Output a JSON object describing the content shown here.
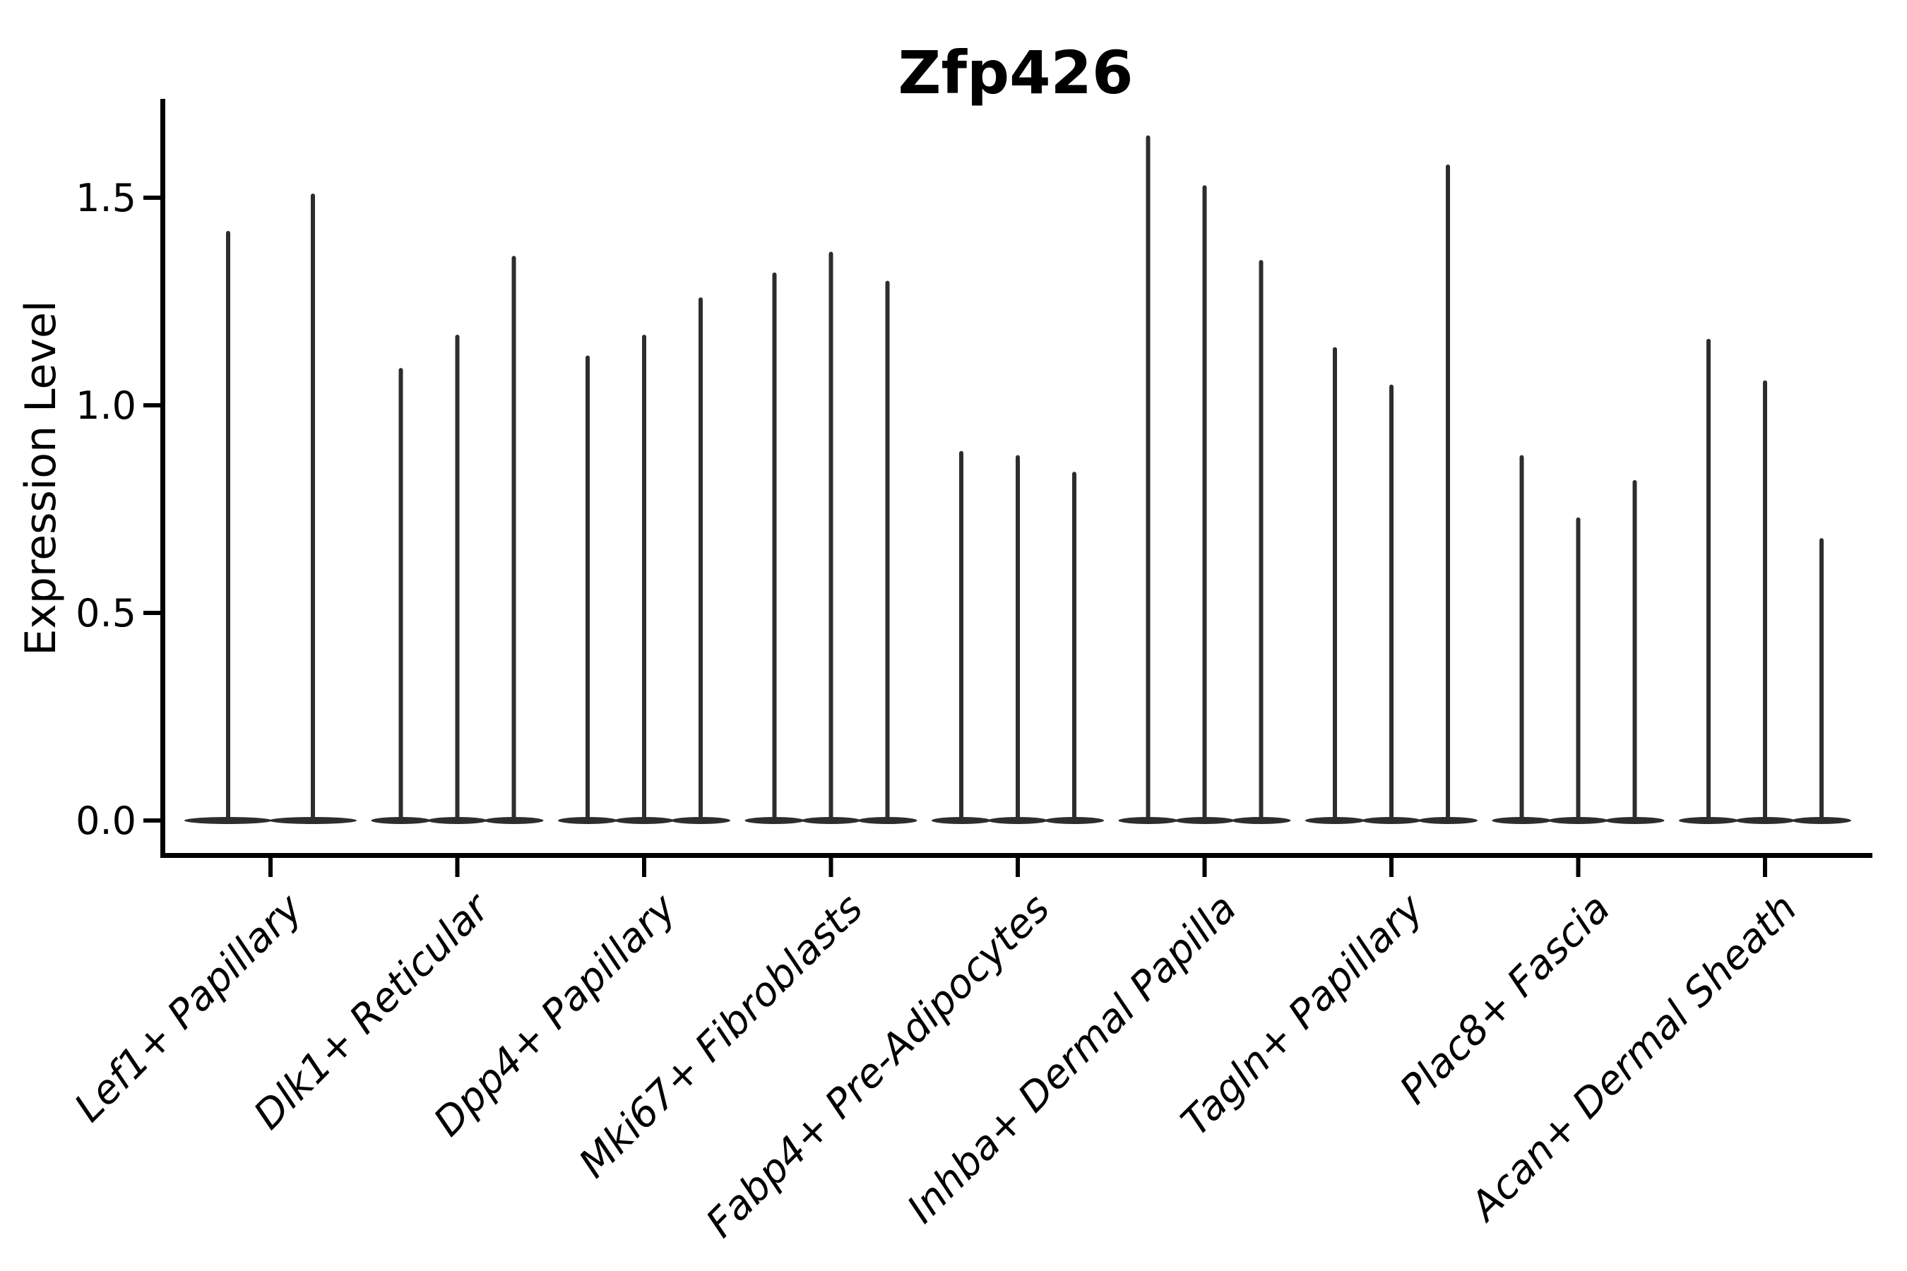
{
  "figure": {
    "title": "Zfp426",
    "y_axis_label": "Expression Level",
    "colors": {
      "violin": "#2d2d2d",
      "axis": "#000000",
      "text": "#000000",
      "background": "#ffffff"
    }
  },
  "chart_data": {
    "type": "violin",
    "title": "Zfp426",
    "xlabel": "",
    "ylabel": "Expression Level",
    "ylim": [
      -0.09,
      1.74
    ],
    "yticks": [
      0.0,
      0.5,
      1.0,
      1.5
    ],
    "ytick_labels": [
      "0.0",
      "0.5",
      "1.0",
      "1.5"
    ],
    "grid": false,
    "legend": "none",
    "x_label_angle_degrees": 45,
    "categories": [
      "Lef1+ Papillary",
      "Dlk1+ Reticular",
      "Dpp4+ Papillary",
      "Mki67+ Fibroblasts",
      "Fabp4+ Pre-Adipocytes",
      "Inhba+ Dermal Papilla",
      "Tagln+ Papillary",
      "Plac8+ Fascia",
      "Acan+ Dermal Sheath"
    ],
    "series_note": "Each category shows narrow violins (density mass at 0 with a thin tail); values are the max expression (tail tip) of each violin, left to right within the group.",
    "violin_peaks": [
      [
        1.42,
        1.51
      ],
      [
        1.09,
        1.17,
        1.36
      ],
      [
        1.12,
        1.17,
        1.26
      ],
      [
        1.32,
        1.37,
        1.3
      ],
      [
        0.89,
        0.88,
        0.84
      ],
      [
        1.65,
        1.53,
        1.35
      ],
      [
        1.14,
        1.05,
        1.58
      ],
      [
        0.88,
        0.73,
        0.82
      ],
      [
        1.16,
        1.06,
        0.68
      ]
    ]
  }
}
